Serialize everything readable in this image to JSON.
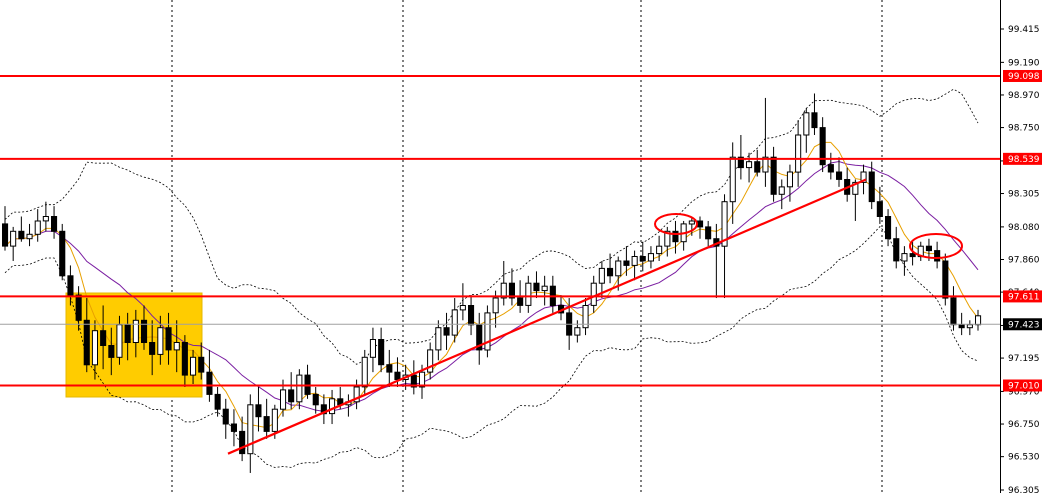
{
  "chart_data": {
    "type": "candlestick",
    "y_axis_ticks": [
      "99.415",
      "99.190",
      "98.970",
      "98.750",
      "98.525",
      "98.305",
      "98.080",
      "97.860",
      "97.640",
      "97.415",
      "97.195",
      "96.970",
      "96.750",
      "96.530",
      "96.305"
    ],
    "ylim": [
      96.305,
      99.415
    ],
    "horizontal_levels": [
      {
        "label": "99.098",
        "value": 99.098
      },
      {
        "label": "98.539",
        "value": 98.539
      },
      {
        "label": "97.611",
        "value": 97.611
      },
      {
        "label": "97.010",
        "value": 97.01
      }
    ],
    "current_price": {
      "label": "97.423",
      "value": 97.423
    },
    "colors": {
      "level": "#ff0000",
      "trendline": "#ff0000",
      "consolidation_box": "#ffcc00",
      "fast_ma": "#e8a000",
      "slow_ma": "#7b1fa2",
      "bands": "#000000",
      "bull_fill": "#ffffff",
      "bear_fill": "#000000",
      "current_line": "#a0a0a0",
      "current_tag": "#000000"
    },
    "candles": [
      [
        98.1,
        98.22,
        97.92,
        97.95
      ],
      [
        97.95,
        98.08,
        97.85,
        98.05
      ],
      [
        98.05,
        98.15,
        97.98,
        98.0
      ],
      [
        98.0,
        98.1,
        97.95,
        98.03
      ],
      [
        98.03,
        98.2,
        97.98,
        98.12
      ],
      [
        98.12,
        98.25,
        98.05,
        98.15
      ],
      [
        98.15,
        98.22,
        98.0,
        98.05
      ],
      [
        98.05,
        98.1,
        97.72,
        97.75
      ],
      [
        97.75,
        97.82,
        97.55,
        97.62
      ],
      [
        97.62,
        97.68,
        97.38,
        97.45
      ],
      [
        97.45,
        97.6,
        97.1,
        97.15
      ],
      [
        97.15,
        97.45,
        97.05,
        97.38
      ],
      [
        97.38,
        97.55,
        97.12,
        97.28
      ],
      [
        97.28,
        97.4,
        97.08,
        97.2
      ],
      [
        97.2,
        97.48,
        97.15,
        97.42
      ],
      [
        97.42,
        97.5,
        97.18,
        97.3
      ],
      [
        97.3,
        97.52,
        97.2,
        97.45
      ],
      [
        97.45,
        97.55,
        97.25,
        97.3
      ],
      [
        97.3,
        97.45,
        97.08,
        97.22
      ],
      [
        97.22,
        97.48,
        97.15,
        97.4
      ],
      [
        97.4,
        97.5,
        97.15,
        97.25
      ],
      [
        97.25,
        97.45,
        97.1,
        97.3
      ],
      [
        97.3,
        97.35,
        97.0,
        97.08
      ],
      [
        97.08,
        97.25,
        97.02,
        97.2
      ],
      [
        97.2,
        97.3,
        97.05,
        97.1
      ],
      [
        97.1,
        97.25,
        96.9,
        96.95
      ],
      [
        96.95,
        97.0,
        96.8,
        96.85
      ],
      [
        96.85,
        96.92,
        96.65,
        96.75
      ],
      [
        96.75,
        96.85,
        96.6,
        96.7
      ],
      [
        96.7,
        96.8,
        96.5,
        96.55
      ],
      [
        96.55,
        96.95,
        96.42,
        96.88
      ],
      [
        96.88,
        97.0,
        96.7,
        96.8
      ],
      [
        96.8,
        96.92,
        96.65,
        96.7
      ],
      [
        96.7,
        96.88,
        96.65,
        96.85
      ],
      [
        96.85,
        97.05,
        96.8,
        96.98
      ],
      [
        96.98,
        97.1,
        96.85,
        96.9
      ],
      [
        96.9,
        97.12,
        96.85,
        97.08
      ],
      [
        97.08,
        97.15,
        96.92,
        96.95
      ],
      [
        96.95,
        97.0,
        96.82,
        96.88
      ],
      [
        96.88,
        96.95,
        96.75,
        96.82
      ],
      [
        96.82,
        96.98,
        96.75,
        96.92
      ],
      [
        96.92,
        97.0,
        96.85,
        96.88
      ],
      [
        96.88,
        96.95,
        96.8,
        96.9
      ],
      [
        96.9,
        97.05,
        96.85,
        97.0
      ],
      [
        97.0,
        97.25,
        96.95,
        97.2
      ],
      [
        97.2,
        97.4,
        97.1,
        97.32
      ],
      [
        97.32,
        97.4,
        97.1,
        97.15
      ],
      [
        97.15,
        97.25,
        97.0,
        97.1
      ],
      [
        97.1,
        97.2,
        97.0,
        97.05
      ],
      [
        97.05,
        97.15,
        96.98,
        97.08
      ],
      [
        97.08,
        97.18,
        96.95,
        97.0
      ],
      [
        97.0,
        97.15,
        96.92,
        97.1
      ],
      [
        97.1,
        97.3,
        97.05,
        97.25
      ],
      [
        97.25,
        97.45,
        97.18,
        97.4
      ],
      [
        97.4,
        97.5,
        97.25,
        97.35
      ],
      [
        97.35,
        97.6,
        97.3,
        97.52
      ],
      [
        97.52,
        97.7,
        97.45,
        97.55
      ],
      [
        97.55,
        97.62,
        97.35,
        97.42
      ],
      [
        97.42,
        97.5,
        97.15,
        97.25
      ],
      [
        97.25,
        97.55,
        97.2,
        97.5
      ],
      [
        97.5,
        97.65,
        97.4,
        97.6
      ],
      [
        97.6,
        97.85,
        97.55,
        97.7
      ],
      [
        97.7,
        97.8,
        97.55,
        97.6
      ],
      [
        97.6,
        97.72,
        97.5,
        97.55
      ],
      [
        97.55,
        97.75,
        97.5,
        97.7
      ],
      [
        97.7,
        97.78,
        97.6,
        97.65
      ],
      [
        97.65,
        97.75,
        97.55,
        97.68
      ],
      [
        97.68,
        97.75,
        97.5,
        97.55
      ],
      [
        97.55,
        97.62,
        97.45,
        97.5
      ],
      [
        97.5,
        97.6,
        97.25,
        97.35
      ],
      [
        97.35,
        97.45,
        97.3,
        97.4
      ],
      [
        97.4,
        97.6,
        97.35,
        97.55
      ],
      [
        97.55,
        97.75,
        97.5,
        97.7
      ],
      [
        97.7,
        97.85,
        97.6,
        97.8
      ],
      [
        97.8,
        97.9,
        97.7,
        97.75
      ],
      [
        97.75,
        97.88,
        97.65,
        97.85
      ],
      [
        97.85,
        97.95,
        97.75,
        97.82
      ],
      [
        97.82,
        97.92,
        97.72,
        97.88
      ],
      [
        97.88,
        97.98,
        97.78,
        97.85
      ],
      [
        97.85,
        97.95,
        97.8,
        97.9
      ],
      [
        97.9,
        98.02,
        97.85,
        97.95
      ],
      [
        97.95,
        98.08,
        97.88,
        98.05
      ],
      [
        98.05,
        98.12,
        97.9,
        97.98
      ],
      [
        97.98,
        98.12,
        97.92,
        98.1
      ],
      [
        98.1,
        98.15,
        98.02,
        98.12
      ],
      [
        98.12,
        98.15,
        98.0,
        98.08
      ],
      [
        98.08,
        98.12,
        97.95,
        98.0
      ],
      [
        98.0,
        98.1,
        97.6,
        97.95
      ],
      [
        97.95,
        98.3,
        97.6,
        98.25
      ],
      [
        98.25,
        98.65,
        98.1,
        98.55
      ],
      [
        98.55,
        98.7,
        98.4,
        98.48
      ],
      [
        98.48,
        98.58,
        98.38,
        98.52
      ],
      [
        98.52,
        98.6,
        98.42,
        98.45
      ],
      [
        98.45,
        98.95,
        98.35,
        98.55
      ],
      [
        98.55,
        98.62,
        98.25,
        98.3
      ],
      [
        98.3,
        98.4,
        98.2,
        98.35
      ],
      [
        98.35,
        98.5,
        98.25,
        98.45
      ],
      [
        98.45,
        98.8,
        98.35,
        98.7
      ],
      [
        98.7,
        98.88,
        98.58,
        98.85
      ],
      [
        98.85,
        98.98,
        98.7,
        98.75
      ],
      [
        98.75,
        98.82,
        98.45,
        98.5
      ],
      [
        98.5,
        98.58,
        98.4,
        98.45
      ],
      [
        98.45,
        98.55,
        98.35,
        98.4
      ],
      [
        98.4,
        98.48,
        98.25,
        98.3
      ],
      [
        98.3,
        98.4,
        98.12,
        98.38
      ],
      [
        98.38,
        98.5,
        98.3,
        98.45
      ],
      [
        98.45,
        98.52,
        98.2,
        98.25
      ],
      [
        98.25,
        98.35,
        98.1,
        98.15
      ],
      [
        98.15,
        98.2,
        97.95,
        98.0
      ],
      [
        98.0,
        98.08,
        97.8,
        97.85
      ],
      [
        97.85,
        97.95,
        97.75,
        97.9
      ],
      [
        97.9,
        97.98,
        97.82,
        97.88
      ],
      [
        97.88,
        97.98,
        97.85,
        97.95
      ],
      [
        97.95,
        98.0,
        97.85,
        97.92
      ],
      [
        97.92,
        97.98,
        97.8,
        97.85
      ],
      [
        97.85,
        97.9,
        97.55,
        97.6
      ],
      [
        97.6,
        97.68,
        97.38,
        97.42
      ],
      [
        97.42,
        97.5,
        97.35,
        97.4
      ],
      [
        97.4,
        97.45,
        97.35,
        97.42
      ],
      [
        97.42,
        97.52,
        97.38,
        97.48
      ]
    ]
  }
}
